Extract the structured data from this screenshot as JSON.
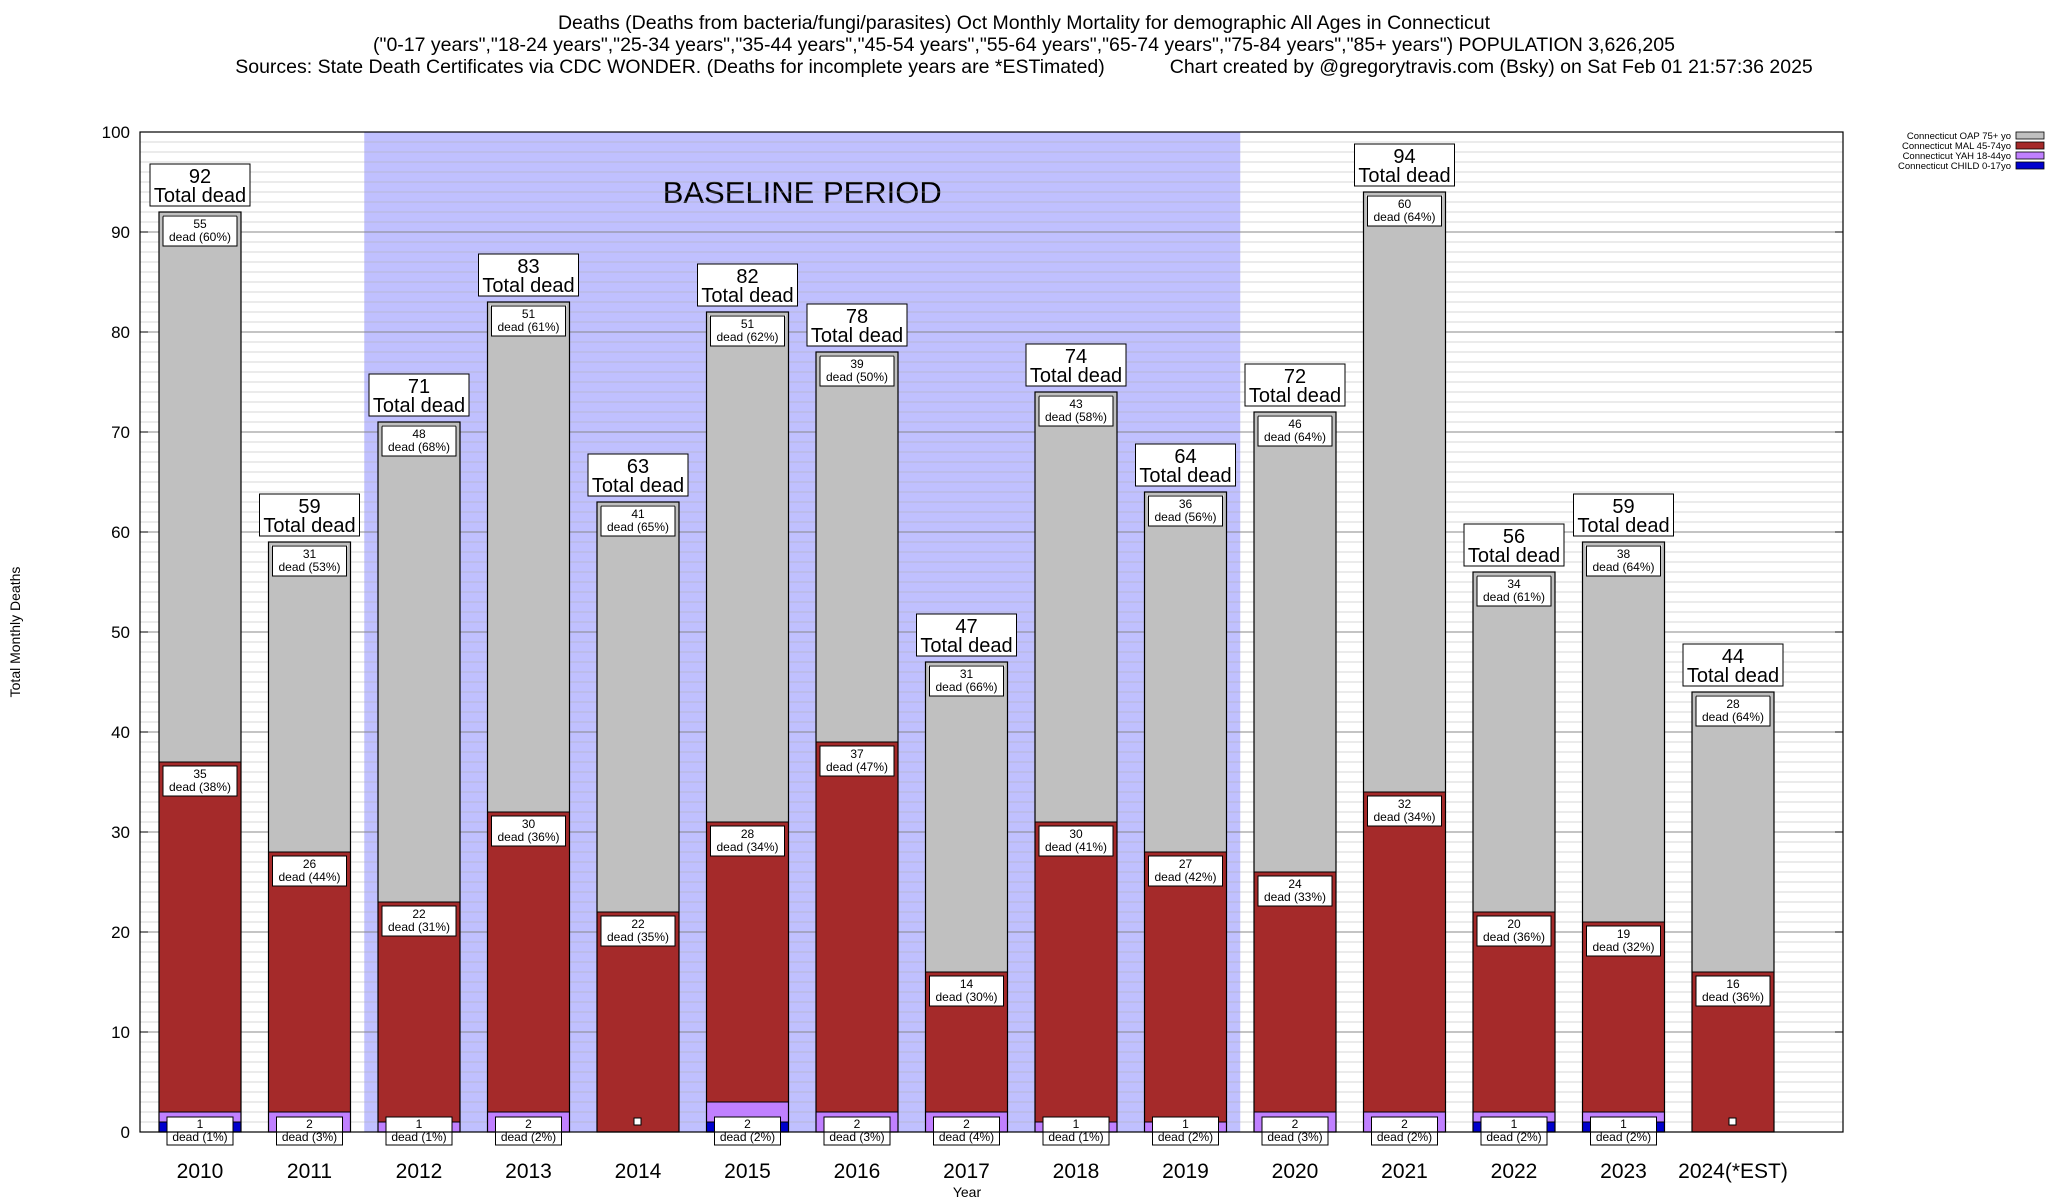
{
  "title": {
    "line1": "Deaths (Deaths from bacteria/fungi/parasites) Oct Monthly Mortality for demographic All Ages in Connecticut",
    "line2": "(\"0-17 years\",\"18-24 years\",\"25-34 years\",\"35-44 years\",\"45-54 years\",\"55-64 years\",\"65-74 years\",\"75-84 years\",\"85+ years\") POPULATION 3,626,205",
    "line3_left": "Sources: State Death Certificates via CDC WONDER. (Deaths for incomplete years are *ESTimated)",
    "line3_right": "Chart created by @gregorytravis.com (Bsky) on Sat Feb 01 21:57:36 2025"
  },
  "colors": {
    "oap": "#c0c0c0",
    "mal": "#a52a2a",
    "yah": "#c080ff",
    "child": "#0000cd",
    "baseline": "#c0c0ff"
  },
  "chart_data": {
    "type": "bar",
    "stacked": true,
    "xlabel": "Year",
    "ylabel": "Total Monthly Deaths",
    "ylim": [
      0,
      100
    ],
    "yticks": [
      0,
      10,
      20,
      30,
      40,
      50,
      60,
      70,
      80,
      90,
      100
    ],
    "grid": true,
    "legend_position": "top-right",
    "categories": [
      "2010",
      "2011",
      "2012",
      "2013",
      "2014",
      "2015",
      "2016",
      "2017",
      "2018",
      "2019",
      "2020",
      "2021",
      "2022",
      "2023",
      "2024(*EST)"
    ],
    "series": [
      {
        "name": "Connecticut CHILD 0-17yo",
        "values": [
          1,
          0,
          0,
          0,
          0,
          1,
          0,
          0,
          0,
          0,
          0,
          0,
          1,
          1,
          0
        ]
      },
      {
        "name": "Connecticut YAH 18-44yo",
        "values": [
          1,
          2,
          1,
          2,
          0,
          2,
          2,
          2,
          1,
          1,
          2,
          2,
          1,
          1,
          0
        ]
      },
      {
        "name": "Connecticut MAL 45-74yo",
        "values": [
          35,
          26,
          22,
          30,
          22,
          28,
          37,
          14,
          30,
          27,
          24,
          32,
          20,
          19,
          16
        ]
      },
      {
        "name": "Connecticut OAP 75+ yo",
        "values": [
          55,
          31,
          48,
          51,
          41,
          51,
          39,
          31,
          43,
          36,
          46,
          60,
          34,
          38,
          28
        ]
      }
    ],
    "totals": [
      92,
      59,
      71,
      83,
      63,
      82,
      78,
      47,
      74,
      64,
      72,
      94,
      56,
      59,
      44
    ],
    "total_label": "Total dead",
    "segment_label_suffix": "dead",
    "labels": {
      "oap": [
        "55",
        "31",
        "48",
        "51",
        "41",
        "51",
        "39",
        "31",
        "43",
        "36",
        "46",
        "60",
        "34",
        "38",
        "28"
      ],
      "oap_pct": [
        "(60%)",
        "(53%)",
        "(68%)",
        "(61%)",
        "(65%)",
        "(62%)",
        "(50%)",
        "(66%)",
        "(58%)",
        "(56%)",
        "(64%)",
        "(64%)",
        "(61%)",
        "(64%)",
        "(64%)"
      ],
      "mal": [
        "35",
        "26",
        "22",
        "30",
        "22",
        "28",
        "37",
        "14",
        "30",
        "27",
        "24",
        "32",
        "20",
        "19",
        "16"
      ],
      "mal_pct": [
        "(38%)",
        "(44%)",
        "(31%)",
        "(36%)",
        "(35%)",
        "(34%)",
        "(47%)",
        "(30%)",
        "(41%)",
        "(42%)",
        "(33%)",
        "(34%)",
        "(36%)",
        "(32%)",
        "(36%)"
      ],
      "yah": [
        "1",
        "2",
        "1",
        "2",
        "",
        "2",
        "2",
        "2",
        "1",
        "1",
        "2",
        "2",
        "1",
        "1",
        ""
      ],
      "yah_pct": [
        "(1%)",
        "(3%)",
        "(1%)",
        "(2%)",
        "",
        "(2%)",
        "(3%)",
        "(4%)",
        "(1%)",
        "(2%)",
        "(3%)",
        "(2%)",
        "(2%)",
        "(2%)",
        ""
      ]
    },
    "annotations": [
      {
        "text": "BASELINE PERIOD",
        "from": "2012",
        "to": "2019"
      }
    ]
  }
}
